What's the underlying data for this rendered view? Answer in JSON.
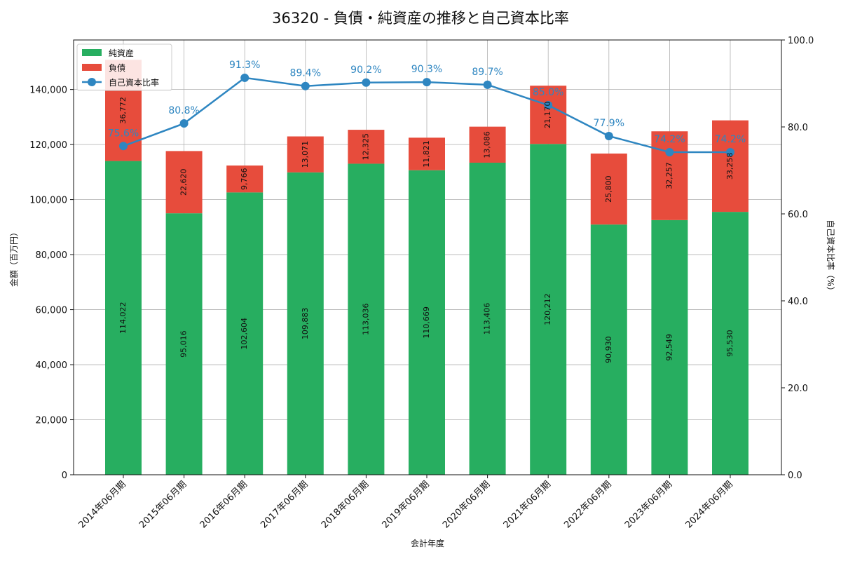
{
  "chart_data": {
    "type": "bar",
    "title": "36320 - 負債・純資産の推移と自己資本比率",
    "xlabel": "会計年度",
    "ylabel": "金額（百万円）",
    "y2label": "自己資本比率（%）",
    "ylim": [
      0,
      158000
    ],
    "y_ticks": [
      0,
      20000,
      40000,
      60000,
      80000,
      100000,
      120000,
      140000
    ],
    "y_tick_labels": [
      "0",
      "20,000",
      "40,000",
      "60,000",
      "80,000",
      "100,000",
      "120,000",
      "140,000"
    ],
    "y2lim": [
      0,
      100
    ],
    "y2_ticks": [
      0,
      20,
      40,
      60,
      80,
      100
    ],
    "y2_tick_labels": [
      "0.0",
      "20.0",
      "40.0",
      "60.0",
      "80.0",
      "100.0"
    ],
    "grid": true,
    "legend_position": "top-left",
    "categories": [
      "2014年06月期",
      "2015年06月期",
      "2016年06月期",
      "2017年06月期",
      "2018年06月期",
      "2019年06月期",
      "2020年06月期",
      "2021年06月期",
      "2022年06月期",
      "2023年06月期",
      "2024年06月期"
    ],
    "series": [
      {
        "name": "純資産",
        "kind": "stacked-bar",
        "color": "#27ae60",
        "values": [
          114022,
          95016,
          102604,
          109883,
          113036,
          110669,
          113406,
          120212,
          90930,
          92549,
          95530
        ],
        "value_labels": [
          "114,022",
          "95,016",
          "102,604",
          "109,883",
          "113,036",
          "110,669",
          "113,406",
          "120,212",
          "90,930",
          "92,549",
          "95,530"
        ]
      },
      {
        "name": "負債",
        "kind": "stacked-bar",
        "color": "#e74c3c",
        "values": [
          36772,
          22620,
          9766,
          13071,
          12325,
          11821,
          13086,
          21170,
          25800,
          32257,
          33258
        ],
        "value_labels": [
          "36,772",
          "22,620",
          "9,766",
          "13,071",
          "12,325",
          "11,821",
          "13,086",
          "21,170",
          "25,800",
          "32,257",
          "33,258"
        ]
      },
      {
        "name": "自己資本比率",
        "kind": "line",
        "axis": "right",
        "color": "#2e86c1",
        "values": [
          75.6,
          80.8,
          91.3,
          89.4,
          90.2,
          90.3,
          89.7,
          85.0,
          77.9,
          74.2,
          74.2
        ],
        "value_labels": [
          "75.6%",
          "80.8%",
          "91.3%",
          "89.4%",
          "90.2%",
          "90.3%",
          "89.7%",
          "85.0%",
          "77.9%",
          "74.2%",
          "74.2%"
        ]
      }
    ]
  }
}
